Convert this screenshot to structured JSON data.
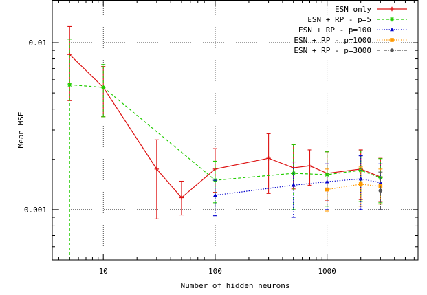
{
  "chart_data": {
    "type": "line",
    "title": "",
    "xlabel": "Number of hidden neurons",
    "ylabel": "Mean MSE",
    "xscale": "log",
    "yscale": "log",
    "xlim": [
      3.5,
      6500
    ],
    "ylim": [
      0.0005,
      0.018
    ],
    "x_ticks": [
      10,
      100,
      1000
    ],
    "x_tick_labels": [
      "10",
      "100",
      "1000"
    ],
    "y_ticks": [
      0.001,
      0.01
    ],
    "y_tick_labels": [
      "0.001",
      "0.01"
    ],
    "grid": true,
    "legend_position": "top-right",
    "series": [
      {
        "name": "ESN only",
        "color": "#dd1111",
        "dash": "solid",
        "marker": "plus",
        "x": [
          5,
          10,
          30,
          50,
          100,
          300,
          500,
          700,
          1000,
          2000,
          3000
        ],
        "y": [
          0.0085,
          0.0054,
          0.00175,
          0.00118,
          0.00175,
          0.00203,
          0.00178,
          0.00183,
          0.00165,
          0.00175,
          0.00157
        ],
        "err_low": [
          0.0045,
          0.0036,
          0.00088,
          0.00093,
          0.00127,
          0.00125,
          0.00133,
          0.0014,
          0.00113,
          0.00115,
          0.00112
        ],
        "err_high": [
          0.0125,
          0.0072,
          0.00262,
          0.00148,
          0.00232,
          0.00285,
          0.00245,
          0.00228,
          0.00222,
          0.00228,
          0.00203
        ]
      },
      {
        "name": "ESN + RP - p=5",
        "color": "#22cc00",
        "dash": "dashed",
        "marker": "star",
        "x": [
          5,
          10,
          100,
          500,
          1000,
          2000,
          3000
        ],
        "y": [
          0.0056,
          0.0054,
          0.0015,
          0.00165,
          0.00162,
          0.00172,
          0.00155
        ],
        "err_low": [
          0.0004,
          0.0036,
          0.0011,
          0.001,
          0.00105,
          0.00112,
          0.0011
        ],
        "err_high": [
          0.0105,
          0.0074,
          0.00195,
          0.00245,
          0.00222,
          0.00225,
          0.00202
        ]
      },
      {
        "name": "ESN + RP - p=100",
        "color": "#0000cc",
        "dash": "dotted",
        "marker": "triangle",
        "x": [
          100,
          500,
          1000,
          2000,
          3000
        ],
        "y": [
          0.00122,
          0.0014,
          0.00147,
          0.00153,
          0.00145
        ],
        "err_low": [
          0.00092,
          0.0009,
          0.001,
          0.001,
          0.001
        ],
        "err_high": [
          0.0015,
          0.00193,
          0.00188,
          0.0021,
          0.00188
        ]
      },
      {
        "name": "ESN + RP - p=1000",
        "color": "#ff9900",
        "dash": "dotted",
        "marker": "square",
        "x": [
          1000,
          2000,
          3000
        ],
        "y": [
          0.00132,
          0.00142,
          0.00138
        ],
        "err_low": [
          0.00098,
          0.00105,
          0.00108
        ],
        "err_high": [
          0.00175,
          0.0018,
          0.00175
        ]
      },
      {
        "name": "ESN + RP - p=3000",
        "color": "#555555",
        "dash": "dashdot",
        "marker": "circle",
        "x": [
          3000
        ],
        "y": [
          0.0013
        ],
        "err_low": [
          0.001
        ],
        "err_high": [
          0.00168
        ]
      }
    ]
  }
}
